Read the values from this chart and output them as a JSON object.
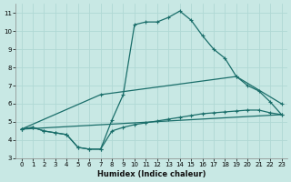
{
  "xlabel": "Humidex (Indice chaleur)",
  "bg_color": "#c8e8e4",
  "grid_color": "#b0d8d4",
  "line_color": "#1a6e6a",
  "xlim": [
    -0.5,
    23.5
  ],
  "ylim": [
    3,
    11.5
  ],
  "xticks": [
    0,
    1,
    2,
    3,
    4,
    5,
    6,
    7,
    8,
    9,
    10,
    11,
    12,
    13,
    14,
    15,
    16,
    17,
    18,
    19,
    20,
    21,
    22,
    23
  ],
  "yticks": [
    3,
    4,
    5,
    6,
    7,
    8,
    9,
    10,
    11
  ],
  "curve1_x": [
    0,
    1,
    2,
    3,
    4,
    5,
    6,
    7,
    8,
    9,
    10,
    11,
    12,
    13,
    14,
    15,
    16,
    17,
    18,
    19,
    20,
    21,
    22,
    23
  ],
  "curve1_y": [
    4.6,
    4.7,
    4.5,
    4.4,
    4.3,
    3.6,
    3.5,
    3.5,
    5.1,
    6.5,
    10.35,
    10.5,
    10.5,
    10.75,
    11.1,
    10.6,
    9.75,
    9.0,
    8.5,
    7.5,
    7.0,
    6.7,
    6.1,
    5.4
  ],
  "curve2_x": [
    0,
    1,
    2,
    3,
    4,
    5,
    6,
    7,
    8,
    9,
    10,
    11,
    12,
    13,
    14,
    15,
    16,
    17,
    18,
    19,
    20,
    21,
    22,
    23
  ],
  "curve2_y": [
    4.6,
    4.7,
    4.5,
    4.4,
    4.3,
    3.6,
    3.5,
    3.5,
    4.5,
    4.7,
    4.85,
    4.95,
    5.05,
    5.15,
    5.25,
    5.35,
    5.45,
    5.5,
    5.55,
    5.6,
    5.65,
    5.65,
    5.5,
    5.4
  ],
  "curve3_x": [
    0,
    23
  ],
  "curve3_y": [
    4.6,
    5.4
  ],
  "curve4_x": [
    0,
    7,
    19,
    23
  ],
  "curve4_y": [
    4.6,
    6.5,
    7.5,
    6.0
  ]
}
